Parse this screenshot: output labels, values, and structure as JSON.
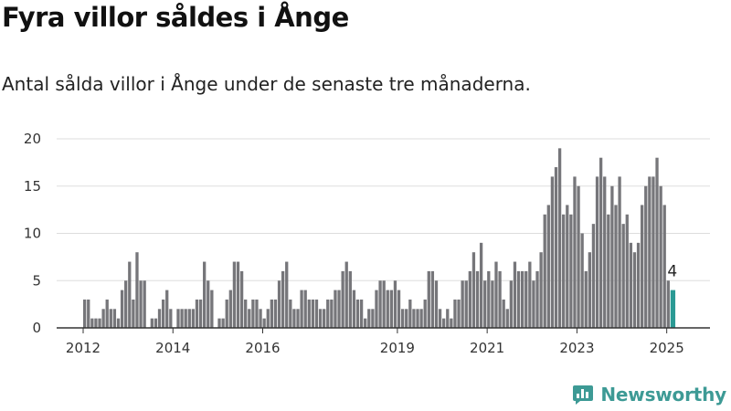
{
  "title": "Fyra villor såldes i Ånge",
  "subtitle": "Antal sålda villor i Ånge under de senaste tre månaderna.",
  "brand": {
    "name": "Newsworthy",
    "icon": "newsworthy-logo-icon",
    "color": "#3d9a95"
  },
  "colors": {
    "bar": "#76767a",
    "highlight": "#2a9a94",
    "grid": "#dddddd",
    "axis": "#333333"
  },
  "chart_data": {
    "type": "bar",
    "title": "Fyra villor såldes i Ånge",
    "subtitle": "Antal sålda villor i Ånge under de senaste tre månaderna.",
    "xlabel": "",
    "ylabel": "",
    "ylim": [
      0,
      20
    ],
    "yticks": [
      0,
      5,
      10,
      15,
      20
    ],
    "xticks": [
      "2012",
      "2014",
      "2016",
      "2019",
      "2021",
      "2023",
      "2025"
    ],
    "grid": true,
    "start_period": "2012-01",
    "period": "month",
    "values": [
      3,
      3,
      1,
      1,
      1,
      2,
      3,
      2,
      2,
      1,
      4,
      5,
      7,
      3,
      8,
      5,
      5,
      0,
      1,
      1,
      2,
      3,
      4,
      2,
      0,
      2,
      2,
      2,
      2,
      2,
      3,
      3,
      7,
      5,
      4,
      0,
      1,
      1,
      3,
      4,
      7,
      7,
      6,
      3,
      2,
      3,
      3,
      2,
      1,
      2,
      3,
      3,
      5,
      6,
      7,
      3,
      2,
      2,
      4,
      4,
      3,
      3,
      3,
      2,
      2,
      3,
      3,
      4,
      4,
      6,
      7,
      6,
      4,
      3,
      3,
      1,
      2,
      2,
      4,
      5,
      5,
      4,
      4,
      5,
      4,
      2,
      2,
      3,
      2,
      2,
      2,
      3,
      6,
      6,
      5,
      2,
      1,
      2,
      1,
      3,
      3,
      5,
      5,
      6,
      8,
      6,
      9,
      5,
      6,
      5,
      7,
      6,
      3,
      2,
      5,
      7,
      6,
      6,
      6,
      7,
      5,
      6,
      8,
      12,
      13,
      16,
      17,
      19,
      12,
      13,
      12,
      16,
      15,
      10,
      6,
      8,
      11,
      16,
      18,
      16,
      12,
      15,
      13,
      16,
      11,
      12,
      9,
      8,
      9,
      13,
      15,
      16,
      16,
      18,
      15,
      13,
      5,
      4
    ],
    "highlight": {
      "index": 157,
      "label": "4"
    }
  }
}
